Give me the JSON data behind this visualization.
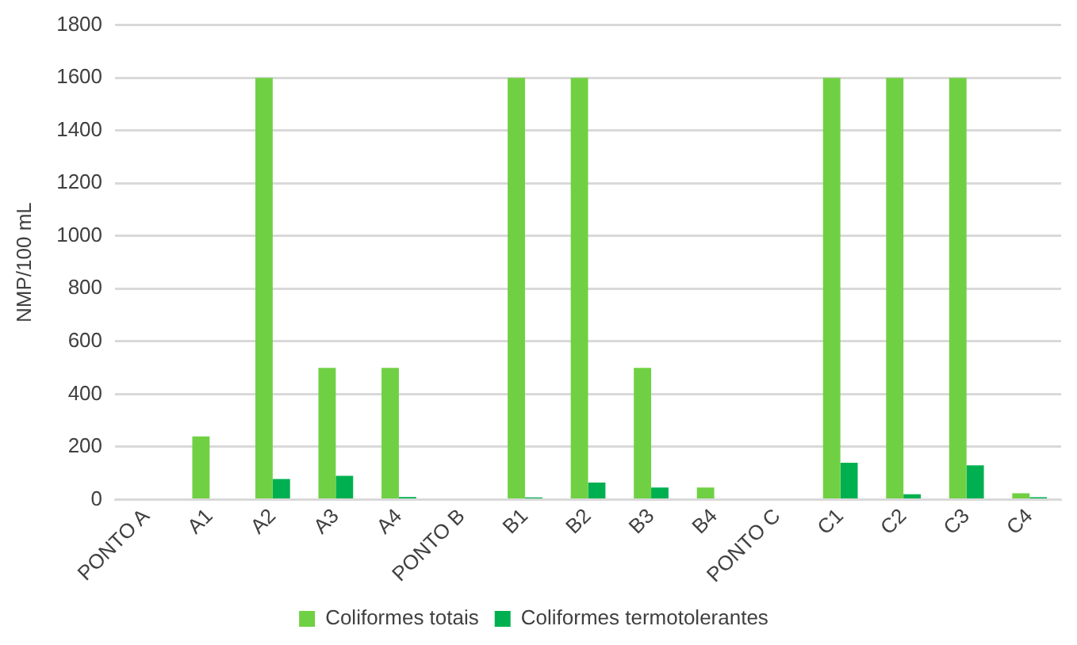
{
  "chart_data": {
    "type": "bar",
    "ylabel": "NMP/100 mL",
    "categories": [
      "PONTO A",
      "A1",
      "A2",
      "A3",
      "A4",
      "PONTO B",
      "B1",
      "B2",
      "B3",
      "B4",
      "PONTO C",
      "C1",
      "C2",
      "C3",
      "C4"
    ],
    "series": [
      {
        "name": "Coliformes totais",
        "color": "#70d044",
        "values": [
          null,
          240,
          1600,
          500,
          500,
          null,
          1600,
          1600,
          500,
          46,
          null,
          1600,
          1600,
          1600,
          24
        ]
      },
      {
        "name": "Coliformes termotolerantes",
        "color": "#00b050",
        "values": [
          null,
          null,
          78,
          90,
          10,
          null,
          8,
          65,
          46,
          null,
          null,
          140,
          20,
          130,
          9
        ]
      }
    ],
    "ylim": [
      0,
      1800
    ],
    "yticks": [
      0,
      200,
      400,
      600,
      800,
      1000,
      1200,
      1400,
      1600,
      1800
    ],
    "grid": "y",
    "legend": "bottom"
  }
}
